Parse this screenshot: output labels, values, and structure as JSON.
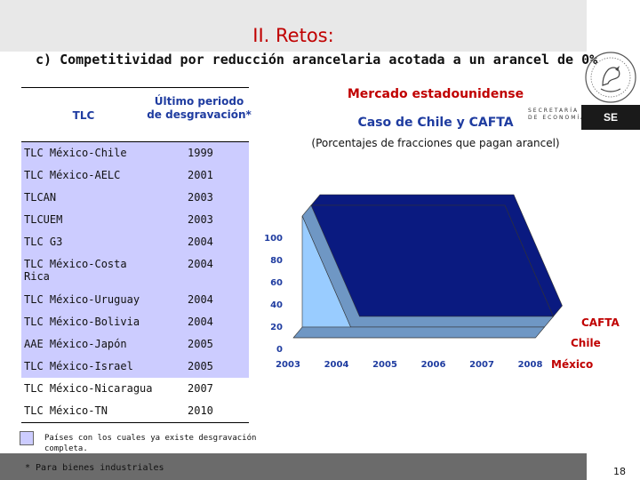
{
  "header": {
    "title": "II. Retos:",
    "subtitle": "c) Competitividad por reducción arancelaria acotada a un arancel de 0%"
  },
  "logos": {
    "secretaria_line1": "SECRETARÍA",
    "secretaria_line2": "DE ECONOMÍA",
    "se": "SE"
  },
  "table": {
    "col_tlc": "TLC",
    "col_year": "Último periodo de desgravación*",
    "rows": [
      {
        "name": "TLC México-Chile",
        "year": "1999",
        "shaded": true
      },
      {
        "name": "TLC México-AELC",
        "year": "2001",
        "shaded": true
      },
      {
        "name": "TLCAN",
        "year": "2003",
        "shaded": true
      },
      {
        "name": "TLCUEM",
        "year": "2003",
        "shaded": true
      },
      {
        "name": "TLC G3",
        "year": "2004",
        "shaded": true
      },
      {
        "name": "TLC México-Costa Rica",
        "year": "2004",
        "shaded": true
      },
      {
        "name": "TLC México-Uruguay",
        "year": "2004",
        "shaded": true
      },
      {
        "name": "TLC México-Bolivia",
        "year": "2004",
        "shaded": true
      },
      {
        "name": "AAE México-Japón",
        "year": "2005",
        "shaded": true
      },
      {
        "name": "TLC México-Israel",
        "year": "2005",
        "shaded": true
      },
      {
        "name": "TLC México-Nicaragua",
        "year": "2007",
        "shaded": false
      },
      {
        "name": "TLC México-TN",
        "year": "2010",
        "shaded": false
      }
    ]
  },
  "legend": {
    "text": "Países con los cuales ya existe desgravación completa."
  },
  "footer": {
    "footnote": "* Para bienes industriales",
    "page": "18"
  },
  "chart_heading": {
    "mercado": "Mercado estadounidense",
    "caso": "Caso de Chile y CAFTA",
    "porcentajes": "(Porcentajes de fracciones que pagan arancel)"
  },
  "chart_data": {
    "type": "area",
    "x": [
      "2003",
      "2004",
      "2005",
      "2006",
      "2007",
      "2008"
    ],
    "ylim": [
      0,
      100
    ],
    "yticks": [
      "0",
      "20",
      "40",
      "60",
      "80",
      "100"
    ],
    "series": [
      {
        "name": "México",
        "values": [
          0,
          0,
          0,
          0,
          0,
          0
        ],
        "color": "#a0a0a0"
      },
      {
        "name": "Chile",
        "values": [
          100,
          0,
          0,
          0,
          0,
          0
        ],
        "color": "#99ccff"
      },
      {
        "name": "CAFTA",
        "values": [
          100,
          100,
          100,
          100,
          100,
          0
        ],
        "color": "#0a1a80"
      }
    ],
    "side_color": "#6f97c4"
  }
}
